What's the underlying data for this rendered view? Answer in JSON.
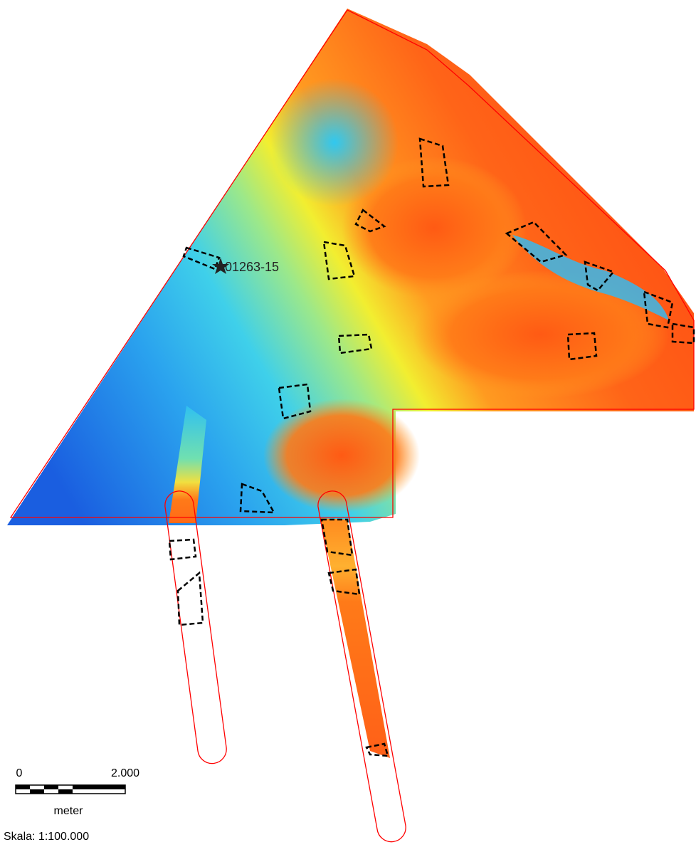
{
  "map": {
    "point_label": "01263-15",
    "scale_bar": {
      "start": "0",
      "end": "2.000",
      "unit": "meter"
    },
    "scale": "Skala: 1:100.000"
  }
}
